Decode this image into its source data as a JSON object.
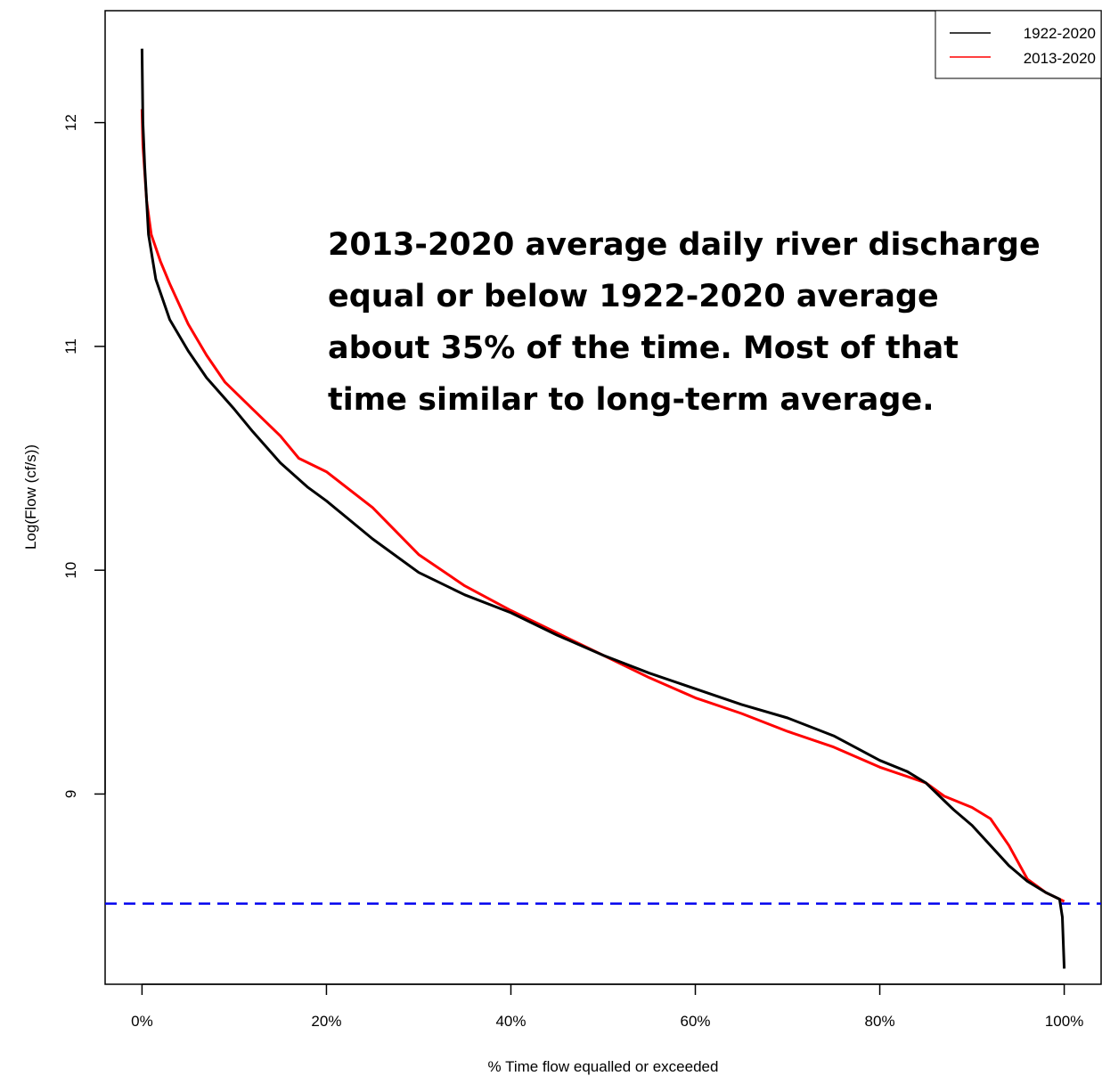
{
  "chart_data": {
    "type": "line",
    "xlabel": "% Time flow equalled or exceeded",
    "ylabel": "Log(Flow (cf/s))",
    "xlim": [
      -4,
      104
    ],
    "ylim": [
      8.15,
      12.5
    ],
    "x_ticks": [
      0,
      20,
      40,
      60,
      80,
      100
    ],
    "x_tick_labels": [
      "0%",
      "20%",
      "40%",
      "60%",
      "80%",
      "100%"
    ],
    "y_ticks": [
      9,
      10,
      11,
      12
    ],
    "y_tick_labels": [
      "9",
      "10",
      "11",
      "12"
    ],
    "grid": false,
    "legend_position": "top-right",
    "series": [
      {
        "name": "1922-2020",
        "color": "#000000",
        "points": [
          [
            0,
            12.33
          ],
          [
            0.1,
            12.0
          ],
          [
            0.3,
            11.8
          ],
          [
            0.7,
            11.5
          ],
          [
            1.5,
            11.3
          ],
          [
            3,
            11.12
          ],
          [
            5,
            10.98
          ],
          [
            7,
            10.86
          ],
          [
            10,
            10.72
          ],
          [
            12,
            10.62
          ],
          [
            15,
            10.48
          ],
          [
            18,
            10.37
          ],
          [
            20,
            10.31
          ],
          [
            25,
            10.14
          ],
          [
            30,
            9.99
          ],
          [
            35,
            9.89
          ],
          [
            40,
            9.81
          ],
          [
            45,
            9.71
          ],
          [
            50,
            9.62
          ],
          [
            55,
            9.54
          ],
          [
            60,
            9.47
          ],
          [
            65,
            9.4
          ],
          [
            70,
            9.34
          ],
          [
            75,
            9.26
          ],
          [
            80,
            9.15
          ],
          [
            83,
            9.1
          ],
          [
            85,
            9.05
          ],
          [
            87,
            8.97
          ],
          [
            88,
            8.93
          ],
          [
            90,
            8.86
          ],
          [
            92,
            8.77
          ],
          [
            94,
            8.68
          ],
          [
            96,
            8.61
          ],
          [
            98,
            8.56
          ],
          [
            99.5,
            8.53
          ],
          [
            99.8,
            8.45
          ],
          [
            100,
            8.22
          ]
        ]
      },
      {
        "name": "2013-2020",
        "color": "#ff0000",
        "points": [
          [
            0,
            12.06
          ],
          [
            0.1,
            11.9
          ],
          [
            0.5,
            11.65
          ],
          [
            1,
            11.5
          ],
          [
            2,
            11.38
          ],
          [
            3,
            11.28
          ],
          [
            5,
            11.1
          ],
          [
            7,
            10.96
          ],
          [
            9,
            10.84
          ],
          [
            12,
            10.72
          ],
          [
            15,
            10.6
          ],
          [
            17,
            10.5
          ],
          [
            20,
            10.44
          ],
          [
            25,
            10.28
          ],
          [
            30,
            10.07
          ],
          [
            35,
            9.93
          ],
          [
            40,
            9.82
          ],
          [
            45,
            9.72
          ],
          [
            50,
            9.62
          ],
          [
            55,
            9.52
          ],
          [
            60,
            9.43
          ],
          [
            65,
            9.36
          ],
          [
            70,
            9.28
          ],
          [
            75,
            9.21
          ],
          [
            80,
            9.12
          ],
          [
            85,
            9.05
          ],
          [
            87,
            8.99
          ],
          [
            90,
            8.94
          ],
          [
            92,
            8.89
          ],
          [
            94,
            8.77
          ],
          [
            96,
            8.62
          ],
          [
            98,
            8.56
          ],
          [
            99.5,
            8.53
          ],
          [
            100,
            8.52
          ]
        ]
      }
    ],
    "reference_line": {
      "y": 8.51,
      "color": "#0000ee",
      "style": "dashed"
    },
    "annotation": [
      "2013-2020 average daily river discharge",
      "equal or below 1922-2020 average",
      "about 35% of the time. Most of that",
      "time similar to long-term average."
    ]
  }
}
